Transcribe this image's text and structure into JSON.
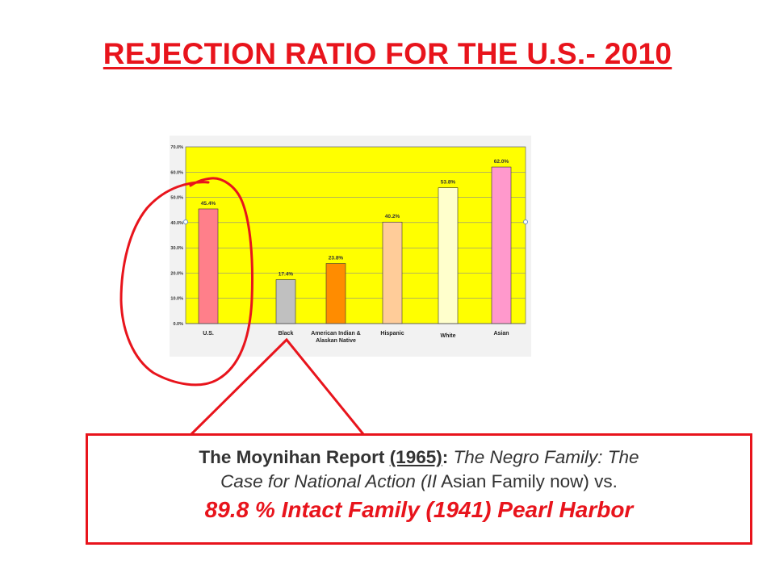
{
  "title": "REJECTION RATIO FOR THE U.S.- 2010",
  "chart_data": {
    "type": "bar",
    "categories": [
      "U.S.",
      "Black",
      "American Indian & Alaskan Native",
      "Hispanic",
      "White",
      "Asian"
    ],
    "category_lines": [
      [
        "U.S."
      ],
      [
        "Black"
      ],
      [
        "American Indian &",
        "Alaskan Native"
      ],
      [
        "Hispanic"
      ],
      [
        "White"
      ],
      [
        "Asian"
      ]
    ],
    "values": [
      45.4,
      17.4,
      23.8,
      40.2,
      53.8,
      62.0
    ],
    "value_labels": [
      "45.4%",
      "17.4%",
      "23.8%",
      "40.2%",
      "53.8%",
      "62.0%"
    ],
    "bar_colors": [
      "#ff7f8a",
      "#c0c0c0",
      "#ff8c00",
      "#ffcc99",
      "#ffffcc",
      "#ff99cc"
    ],
    "ylim": [
      0,
      70
    ],
    "yticks": [
      "0.0%",
      "10.0%",
      "20.0%",
      "30.0%",
      "40.0%",
      "50.0%",
      "60.0%",
      "70.0%"
    ],
    "plot_background": "#ffff00",
    "grid": true,
    "legend": "none"
  },
  "callout": {
    "line1": {
      "report": "The Moynihan Report",
      "year": "(1965)",
      "colon": ":",
      "subtitle": " The Negro Family: The"
    },
    "line2": {
      "italic_part": "Case for National Action (II",
      "plain_part": " Asian Family now) vs."
    },
    "line3": "89.8 % Intact Family (1941) Pearl Harbor"
  },
  "colors": {
    "accent": "#e8141c",
    "text": "#333333"
  }
}
